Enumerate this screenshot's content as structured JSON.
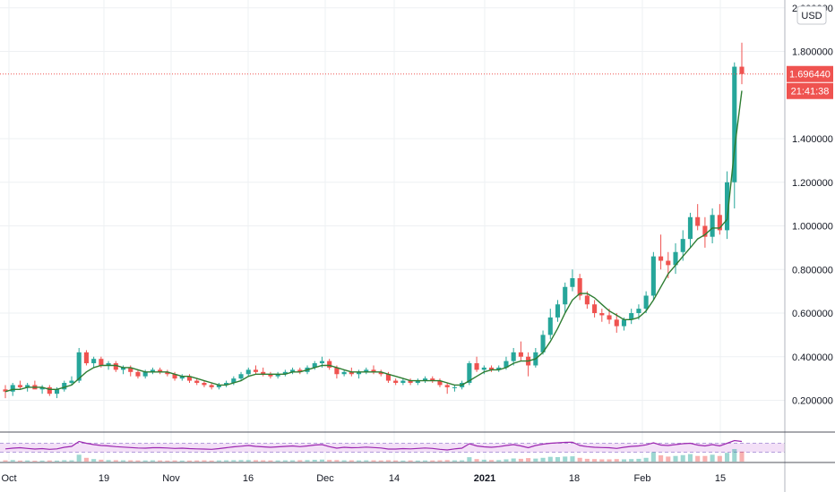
{
  "chart_data": {
    "type": "candlestick",
    "price_axis": {
      "currency": "USD",
      "tick_labels": [
        "2.000000",
        "1.800000",
        "1.400000",
        "1.200000",
        "1.000000",
        "0.800000",
        "0.600000",
        "0.400000",
        "0.200000"
      ],
      "tick_values": [
        2.0,
        1.8,
        1.4,
        1.2,
        1.0,
        0.8,
        0.6,
        0.4,
        0.2
      ],
      "range": [
        0.0,
        2.06
      ]
    },
    "time_axis": {
      "labels": [
        "Oct",
        "19",
        "Nov",
        "16",
        "Dec",
        "14",
        "2021",
        "18",
        "Feb",
        "15"
      ],
      "bold": [
        "2021"
      ]
    },
    "current_price": {
      "value": 1.69644,
      "label": "1.696440",
      "countdown": "21:41:38",
      "color": "#ef5350"
    },
    "colors": {
      "up": "#26a69a",
      "down": "#ef5350",
      "ma": "#2e7d32",
      "rsi_line": "#9c27b0",
      "rsi_band": "#f3e0f7",
      "grid": "#eef0f3"
    },
    "grid": true,
    "candles": [
      [
        0.25,
        0.27,
        0.21,
        0.24
      ],
      [
        0.24,
        0.28,
        0.22,
        0.27
      ],
      [
        0.27,
        0.29,
        0.25,
        0.26
      ],
      [
        0.26,
        0.28,
        0.24,
        0.27
      ],
      [
        0.27,
        0.29,
        0.26,
        0.25
      ],
      [
        0.25,
        0.27,
        0.23,
        0.26
      ],
      [
        0.26,
        0.27,
        0.22,
        0.23
      ],
      [
        0.23,
        0.26,
        0.21,
        0.25
      ],
      [
        0.25,
        0.29,
        0.24,
        0.28
      ],
      [
        0.28,
        0.31,
        0.27,
        0.29
      ],
      [
        0.29,
        0.44,
        0.28,
        0.42
      ],
      [
        0.42,
        0.43,
        0.36,
        0.37
      ],
      [
        0.37,
        0.4,
        0.35,
        0.39
      ],
      [
        0.39,
        0.4,
        0.35,
        0.36
      ],
      [
        0.36,
        0.38,
        0.34,
        0.37
      ],
      [
        0.37,
        0.38,
        0.33,
        0.34
      ],
      [
        0.34,
        0.36,
        0.32,
        0.35
      ],
      [
        0.35,
        0.36,
        0.31,
        0.33
      ],
      [
        0.33,
        0.34,
        0.3,
        0.31
      ],
      [
        0.31,
        0.34,
        0.3,
        0.33
      ],
      [
        0.33,
        0.35,
        0.32,
        0.34
      ],
      [
        0.34,
        0.35,
        0.32,
        0.33
      ],
      [
        0.33,
        0.34,
        0.31,
        0.32
      ],
      [
        0.32,
        0.33,
        0.29,
        0.3
      ],
      [
        0.3,
        0.32,
        0.29,
        0.31
      ],
      [
        0.31,
        0.32,
        0.28,
        0.29
      ],
      [
        0.29,
        0.3,
        0.27,
        0.28
      ],
      [
        0.28,
        0.29,
        0.26,
        0.27
      ],
      [
        0.27,
        0.28,
        0.25,
        0.26
      ],
      [
        0.26,
        0.28,
        0.25,
        0.27
      ],
      [
        0.27,
        0.29,
        0.26,
        0.28
      ],
      [
        0.28,
        0.31,
        0.27,
        0.3
      ],
      [
        0.3,
        0.33,
        0.29,
        0.32
      ],
      [
        0.32,
        0.35,
        0.31,
        0.34
      ],
      [
        0.34,
        0.36,
        0.32,
        0.33
      ],
      [
        0.33,
        0.35,
        0.31,
        0.32
      ],
      [
        0.32,
        0.33,
        0.3,
        0.31
      ],
      [
        0.31,
        0.33,
        0.3,
        0.32
      ],
      [
        0.32,
        0.34,
        0.31,
        0.33
      ],
      [
        0.33,
        0.35,
        0.32,
        0.34
      ],
      [
        0.34,
        0.35,
        0.32,
        0.33
      ],
      [
        0.33,
        0.36,
        0.32,
        0.35
      ],
      [
        0.35,
        0.38,
        0.34,
        0.37
      ],
      [
        0.37,
        0.4,
        0.35,
        0.38
      ],
      [
        0.38,
        0.39,
        0.34,
        0.35
      ],
      [
        0.35,
        0.36,
        0.3,
        0.32
      ],
      [
        0.32,
        0.34,
        0.31,
        0.33
      ],
      [
        0.33,
        0.35,
        0.31,
        0.32
      ],
      [
        0.32,
        0.34,
        0.3,
        0.33
      ],
      [
        0.33,
        0.35,
        0.32,
        0.34
      ],
      [
        0.34,
        0.36,
        0.32,
        0.33
      ],
      [
        0.33,
        0.34,
        0.31,
        0.32
      ],
      [
        0.32,
        0.33,
        0.28,
        0.29
      ],
      [
        0.29,
        0.3,
        0.27,
        0.28
      ],
      [
        0.28,
        0.3,
        0.27,
        0.29
      ],
      [
        0.29,
        0.3,
        0.27,
        0.28
      ],
      [
        0.28,
        0.3,
        0.27,
        0.29
      ],
      [
        0.29,
        0.31,
        0.28,
        0.3
      ],
      [
        0.3,
        0.31,
        0.28,
        0.29
      ],
      [
        0.29,
        0.3,
        0.26,
        0.27
      ],
      [
        0.27,
        0.28,
        0.23,
        0.26
      ],
      [
        0.26,
        0.27,
        0.24,
        0.26
      ],
      [
        0.26,
        0.29,
        0.25,
        0.28
      ],
      [
        0.28,
        0.38,
        0.27,
        0.37
      ],
      [
        0.37,
        0.4,
        0.33,
        0.34
      ],
      [
        0.34,
        0.36,
        0.32,
        0.35
      ],
      [
        0.35,
        0.36,
        0.33,
        0.34
      ],
      [
        0.34,
        0.36,
        0.33,
        0.35
      ],
      [
        0.35,
        0.4,
        0.34,
        0.38
      ],
      [
        0.38,
        0.44,
        0.36,
        0.42
      ],
      [
        0.42,
        0.47,
        0.38,
        0.4
      ],
      [
        0.4,
        0.42,
        0.31,
        0.36
      ],
      [
        0.36,
        0.44,
        0.35,
        0.42
      ],
      [
        0.42,
        0.52,
        0.41,
        0.5
      ],
      [
        0.5,
        0.62,
        0.48,
        0.58
      ],
      [
        0.58,
        0.66,
        0.56,
        0.64
      ],
      [
        0.64,
        0.74,
        0.6,
        0.72
      ],
      [
        0.72,
        0.8,
        0.7,
        0.76
      ],
      [
        0.76,
        0.78,
        0.66,
        0.68
      ],
      [
        0.68,
        0.7,
        0.62,
        0.64
      ],
      [
        0.64,
        0.66,
        0.58,
        0.6
      ],
      [
        0.6,
        0.62,
        0.56,
        0.59
      ],
      [
        0.59,
        0.62,
        0.55,
        0.57
      ],
      [
        0.57,
        0.6,
        0.51,
        0.54
      ],
      [
        0.54,
        0.58,
        0.52,
        0.57
      ],
      [
        0.57,
        0.62,
        0.55,
        0.6
      ],
      [
        0.6,
        0.64,
        0.57,
        0.62
      ],
      [
        0.62,
        0.7,
        0.6,
        0.68
      ],
      [
        0.68,
        0.88,
        0.66,
        0.86
      ],
      [
        0.86,
        0.96,
        0.8,
        0.84
      ],
      [
        0.84,
        0.88,
        0.76,
        0.82
      ],
      [
        0.82,
        0.92,
        0.78,
        0.88
      ],
      [
        0.88,
        0.98,
        0.84,
        0.94
      ],
      [
        0.94,
        1.06,
        0.9,
        1.04
      ],
      [
        1.04,
        1.1,
        0.98,
        1.0
      ],
      [
        1.0,
        1.04,
        0.9,
        0.95
      ],
      [
        0.95,
        1.08,
        0.92,
        1.05
      ],
      [
        1.05,
        1.1,
        0.96,
        0.98
      ],
      [
        0.98,
        1.25,
        0.94,
        1.2
      ],
      [
        1.2,
        1.75,
        1.08,
        1.73
      ],
      [
        1.73,
        1.84,
        1.65,
        1.69644
      ]
    ],
    "moving_average": [
      0.24,
      0.25,
      0.25,
      0.26,
      0.26,
      0.26,
      0.25,
      0.25,
      0.26,
      0.27,
      0.3,
      0.33,
      0.35,
      0.36,
      0.36,
      0.36,
      0.35,
      0.35,
      0.34,
      0.33,
      0.33,
      0.33,
      0.33,
      0.32,
      0.31,
      0.31,
      0.3,
      0.29,
      0.28,
      0.27,
      0.27,
      0.28,
      0.29,
      0.31,
      0.32,
      0.32,
      0.32,
      0.32,
      0.32,
      0.33,
      0.33,
      0.34,
      0.35,
      0.36,
      0.36,
      0.35,
      0.34,
      0.33,
      0.33,
      0.33,
      0.33,
      0.33,
      0.32,
      0.31,
      0.3,
      0.29,
      0.29,
      0.29,
      0.29,
      0.29,
      0.28,
      0.27,
      0.27,
      0.29,
      0.31,
      0.33,
      0.34,
      0.34,
      0.35,
      0.37,
      0.38,
      0.38,
      0.39,
      0.42,
      0.47,
      0.53,
      0.6,
      0.66,
      0.69,
      0.69,
      0.67,
      0.64,
      0.61,
      0.59,
      0.57,
      0.57,
      0.58,
      0.61,
      0.66,
      0.72,
      0.78,
      0.82,
      0.86,
      0.9,
      0.94,
      0.96,
      0.99,
      0.99,
      1.03,
      1.35,
      1.62
    ],
    "rsi": [
      45,
      48,
      50,
      47,
      44,
      46,
      43,
      45,
      52,
      56,
      78,
      70,
      64,
      60,
      58,
      55,
      53,
      51,
      49,
      48,
      50,
      50,
      49,
      47,
      48,
      46,
      45,
      44,
      43,
      46,
      50,
      54,
      57,
      60,
      56,
      54,
      52,
      54,
      56,
      58,
      55,
      58,
      62,
      64,
      55,
      48,
      52,
      50,
      51,
      53,
      51,
      49,
      44,
      44,
      46,
      45,
      47,
      49,
      47,
      43,
      40,
      45,
      48,
      68,
      58,
      54,
      52,
      55,
      60,
      64,
      58,
      50,
      60,
      66,
      70,
      72,
      74,
      75,
      60,
      55,
      52,
      51,
      50,
      47,
      52,
      56,
      58,
      63,
      72,
      62,
      60,
      64,
      68,
      70,
      62,
      58,
      64,
      58,
      70,
      82,
      78
    ],
    "volume": [
      0.1,
      0.12,
      0.08,
      0.09,
      0.07,
      0.08,
      0.09,
      0.08,
      0.11,
      0.1,
      0.55,
      0.3,
      0.2,
      0.15,
      0.12,
      0.11,
      0.1,
      0.1,
      0.09,
      0.09,
      0.1,
      0.09,
      0.08,
      0.09,
      0.08,
      0.08,
      0.09,
      0.1,
      0.08,
      0.09,
      0.1,
      0.11,
      0.12,
      0.12,
      0.11,
      0.1,
      0.09,
      0.09,
      0.1,
      0.1,
      0.11,
      0.12,
      0.14,
      0.16,
      0.13,
      0.12,
      0.1,
      0.1,
      0.09,
      0.1,
      0.1,
      0.09,
      0.11,
      0.09,
      0.08,
      0.09,
      0.08,
      0.09,
      0.09,
      0.1,
      0.12,
      0.1,
      0.1,
      0.35,
      0.2,
      0.15,
      0.12,
      0.12,
      0.18,
      0.25,
      0.22,
      0.28,
      0.24,
      0.3,
      0.38,
      0.36,
      0.4,
      0.42,
      0.3,
      0.22,
      0.2,
      0.18,
      0.18,
      0.2,
      0.18,
      0.2,
      0.22,
      0.3,
      0.75,
      0.5,
      0.4,
      0.45,
      0.52,
      0.6,
      0.45,
      0.45,
      0.55,
      0.45,
      0.7,
      1.0,
      0.8
    ]
  }
}
